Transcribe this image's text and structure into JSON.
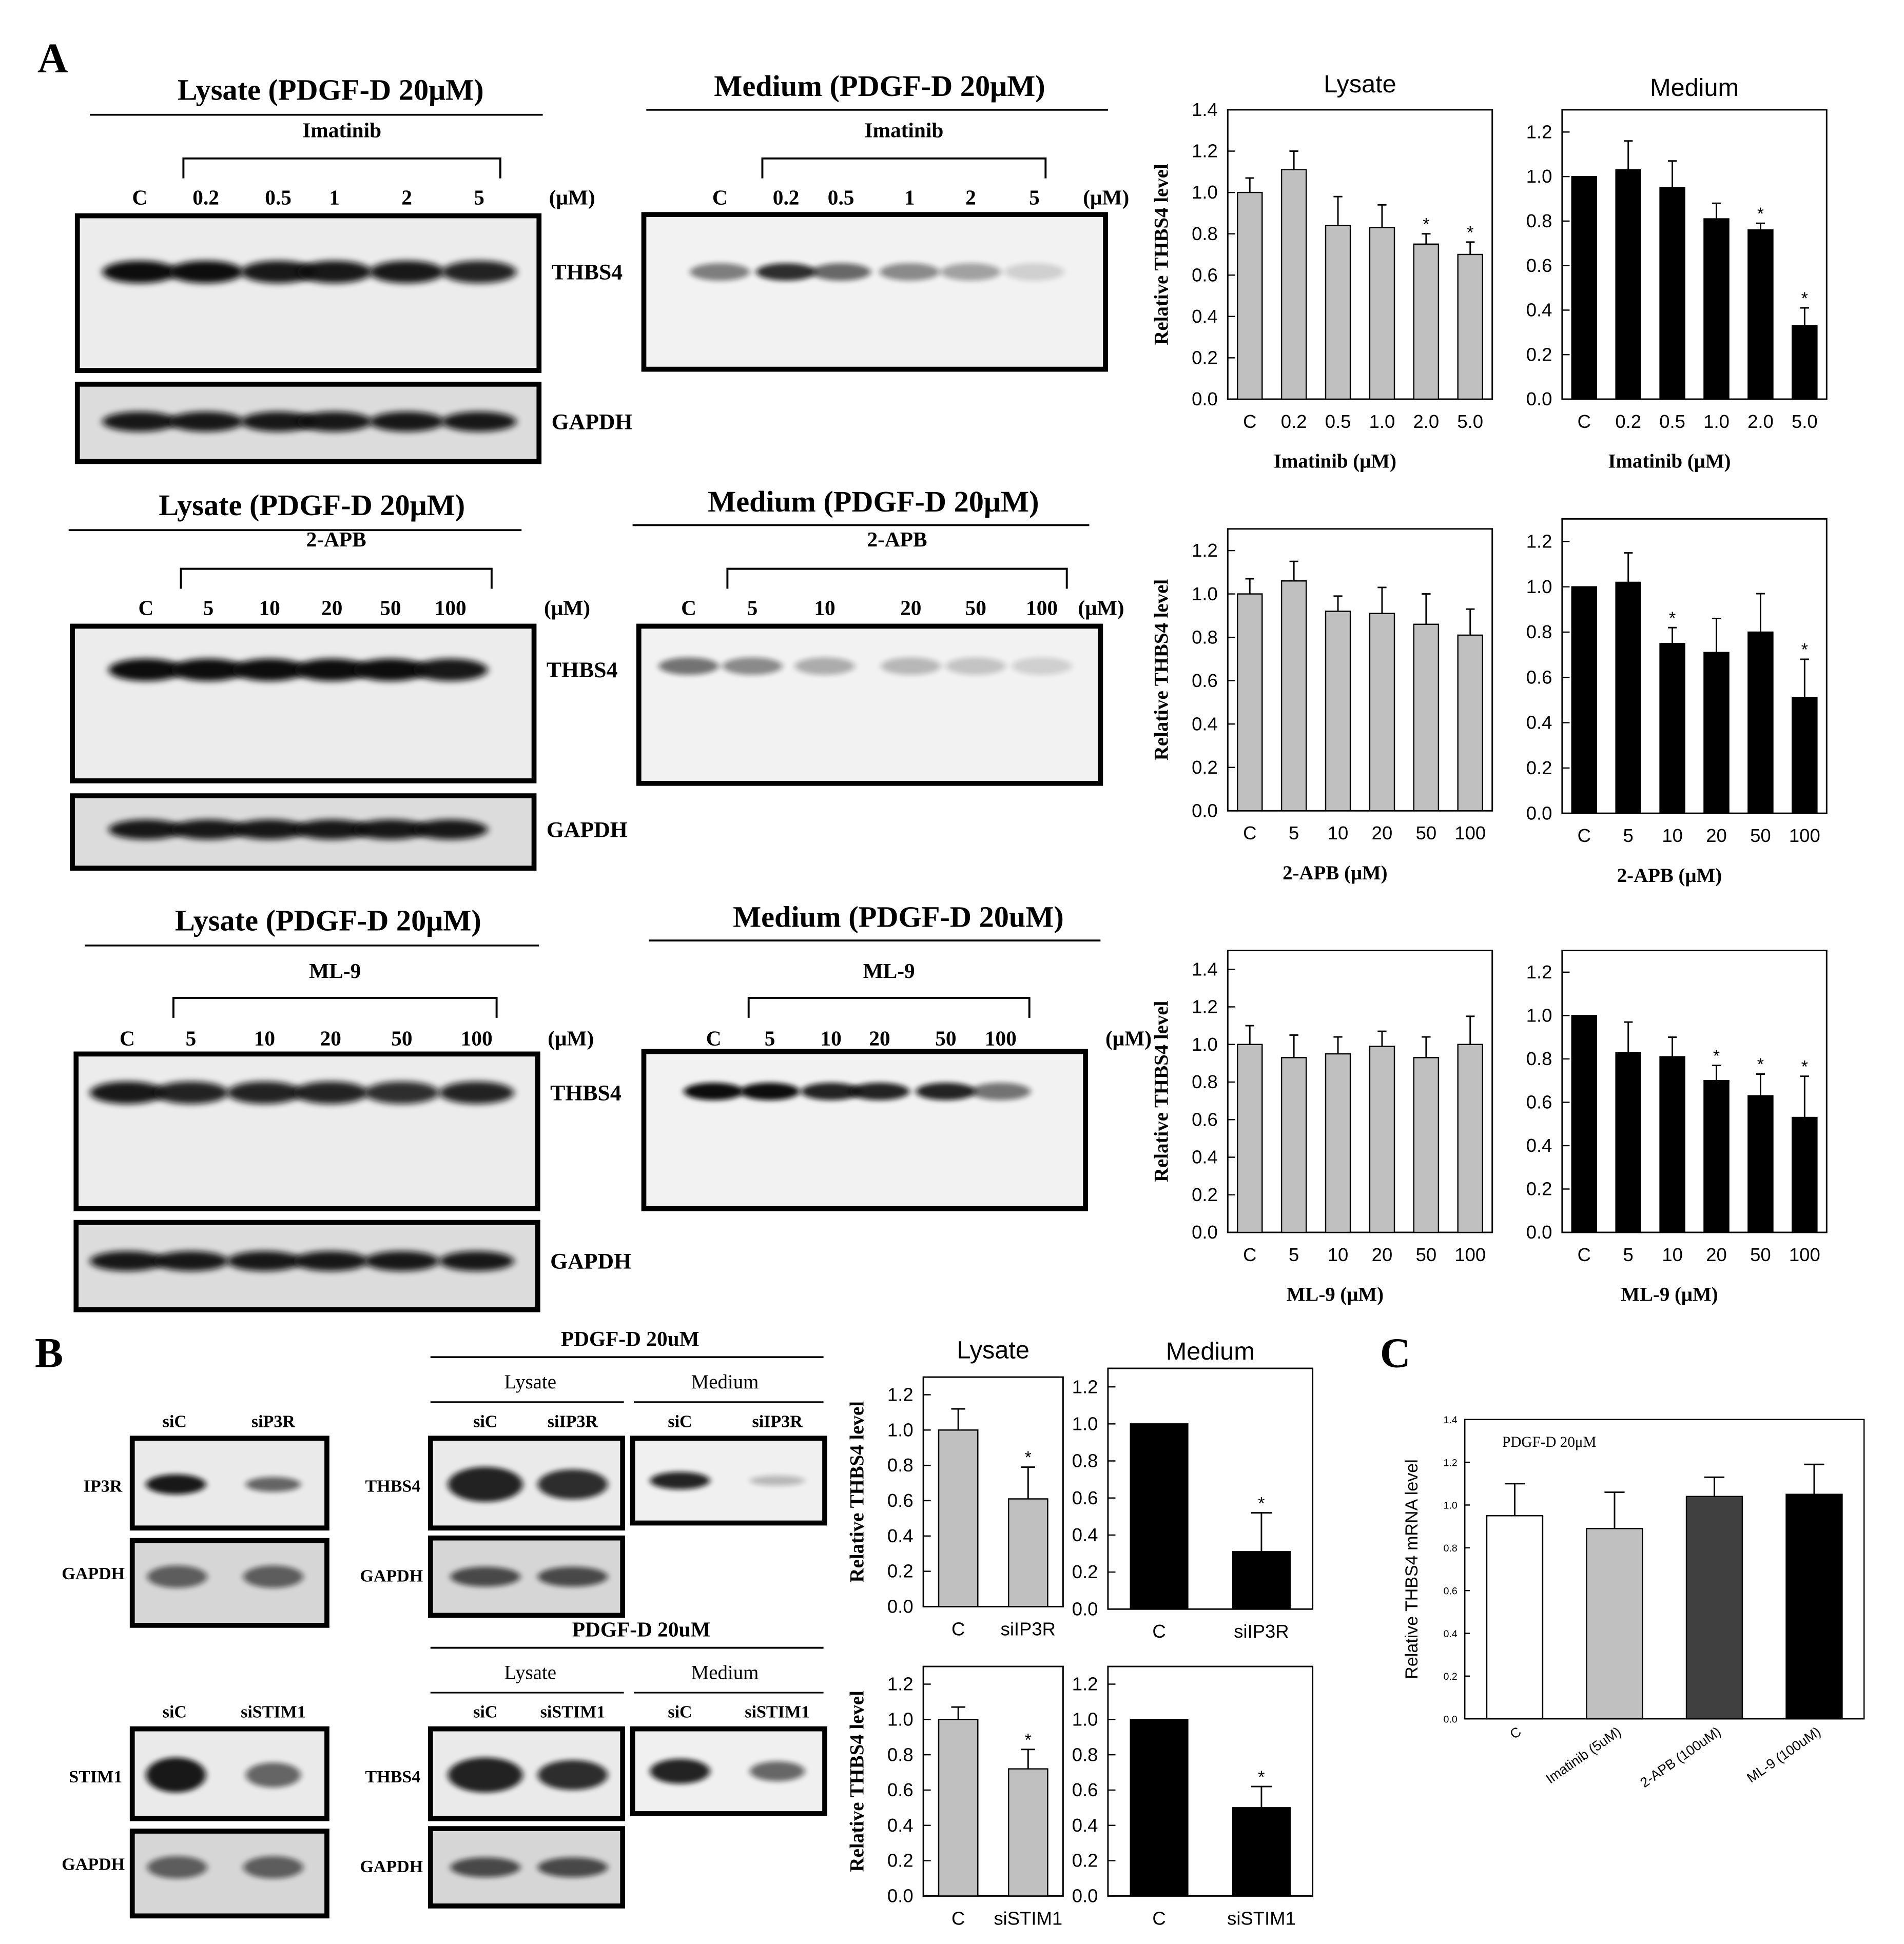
{
  "panels": {
    "A": "A",
    "B": "B",
    "C": "C"
  },
  "colors": {
    "gray_bar": "#c0c0c0",
    "black_bar": "#000000",
    "dark_bar": "#404040",
    "white_bar": "#ffffff",
    "blot_band": "#1a1a1a"
  },
  "panelA": {
    "rows": [
      {
        "lysate_title": "Lysate (PDGF-D 20μM)",
        "medium_title": "Medium (PDGF-D 20μM)",
        "drug": "Imatinib",
        "lysate_lanes": [
          "C",
          "0.2",
          "0.5",
          "1",
          "2",
          "5"
        ],
        "medium_lanes": [
          "C",
          "0.2",
          "0.5",
          "1",
          "2",
          "5"
        ],
        "unit": "(μM)",
        "band1": "THBS4",
        "band2": "GAPDH"
      },
      {
        "lysate_title": "Lysate (PDGF-D 20μM)",
        "medium_title": "Medium (PDGF-D 20μM)",
        "drug": "2-APB",
        "lysate_lanes": [
          "C",
          "5",
          "10",
          "20",
          "50",
          "100"
        ],
        "medium_lanes": [
          "C",
          "5",
          "10",
          "20",
          "50",
          "100"
        ],
        "unit": "(μM)",
        "band1": "THBS4",
        "band2": "GAPDH"
      },
      {
        "lysate_title": "Lysate (PDGF-D 20μM)",
        "medium_title": "Medium (PDGF-D 20uM)",
        "drug": "ML-9",
        "lysate_lanes": [
          "C",
          "5",
          "10",
          "20",
          "50",
          "100"
        ],
        "medium_lanes": [
          "C",
          "5",
          "10",
          "20",
          "50",
          "100"
        ],
        "unit": "(μM)",
        "band1": "THBS4",
        "band2": "GAPDH"
      }
    ]
  },
  "panelB": {
    "top": {
      "kd_labels": [
        "siC",
        "siP3R"
      ],
      "kd_target": "IP3R",
      "loading": "GAPDH",
      "header": "PDGF-D 20uM",
      "lysate": "Lysate",
      "medium": "Medium",
      "lanes": [
        "siC",
        "siIP3R"
      ],
      "band": "THBS4"
    },
    "bottom": {
      "kd_labels": [
        "siC",
        "siSTIM1"
      ],
      "kd_target": "STIM1",
      "loading": "GAPDH",
      "header": "PDGF-D 20uM",
      "lysate": "Lysate",
      "medium": "Medium",
      "lanes": [
        "siC",
        "siSTIM1"
      ],
      "band": "THBS4"
    }
  },
  "chart_data": [
    {
      "id": "A-imatinib-lysate",
      "type": "bar",
      "title": "Lysate",
      "categories": [
        "C",
        "0.2",
        "0.5",
        "1.0",
        "2.0",
        "5.0"
      ],
      "values": [
        1.0,
        1.11,
        0.84,
        0.83,
        0.75,
        0.7
      ],
      "errors": [
        0.07,
        0.09,
        0.14,
        0.11,
        0.05,
        0.06
      ],
      "significant": [
        false,
        false,
        false,
        false,
        true,
        true
      ],
      "xlabel": "Imatinib (μM)",
      "ylabel": "Relative THBS4 level",
      "ylim": [
        0,
        1.4
      ],
      "yticks": [
        0.0,
        0.2,
        0.4,
        0.6,
        0.8,
        1.0,
        1.2,
        1.4
      ],
      "color": "#c0c0c0"
    },
    {
      "id": "A-imatinib-medium",
      "type": "bar",
      "title": "Medium",
      "categories": [
        "C",
        "0.2",
        "0.5",
        "1.0",
        "2.0",
        "5.0"
      ],
      "values": [
        1.0,
        1.03,
        0.95,
        0.81,
        0.76,
        0.33
      ],
      "errors": [
        0.0,
        0.13,
        0.12,
        0.07,
        0.03,
        0.08
      ],
      "significant": [
        false,
        false,
        false,
        false,
        true,
        true
      ],
      "xlabel": "Imatinib (μM)",
      "ylabel": "",
      "ylim": [
        0,
        1.3
      ],
      "yticks": [
        0.0,
        0.2,
        0.4,
        0.6,
        0.8,
        1.0,
        1.2
      ],
      "color": "#000000"
    },
    {
      "id": "A-2apb-lysate",
      "type": "bar",
      "title": "",
      "categories": [
        "C",
        "5",
        "10",
        "20",
        "50",
        "100"
      ],
      "values": [
        1.0,
        1.06,
        0.92,
        0.91,
        0.86,
        0.81
      ],
      "errors": [
        0.07,
        0.09,
        0.07,
        0.12,
        0.14,
        0.12
      ],
      "significant": [
        false,
        false,
        false,
        false,
        false,
        false
      ],
      "xlabel": "2-APB (μM)",
      "ylabel": "Relative THBS4 level",
      "ylim": [
        0,
        1.3
      ],
      "yticks": [
        0.0,
        0.2,
        0.4,
        0.6,
        0.8,
        1.0,
        1.2
      ],
      "color": "#c0c0c0"
    },
    {
      "id": "A-2apb-medium",
      "type": "bar",
      "title": "",
      "categories": [
        "C",
        "5",
        "10",
        "20",
        "50",
        "100"
      ],
      "values": [
        1.0,
        1.02,
        0.75,
        0.71,
        0.8,
        0.51
      ],
      "errors": [
        0.0,
        0.13,
        0.07,
        0.15,
        0.17,
        0.17
      ],
      "significant": [
        false,
        false,
        true,
        false,
        false,
        true
      ],
      "xlabel": "2-APB (μM)",
      "ylabel": "",
      "ylim": [
        0,
        1.3
      ],
      "yticks": [
        0.0,
        0.2,
        0.4,
        0.6,
        0.8,
        1.0,
        1.2
      ],
      "color": "#000000"
    },
    {
      "id": "A-ml9-lysate",
      "type": "bar",
      "title": "",
      "categories": [
        "C",
        "5",
        "10",
        "20",
        "50",
        "100"
      ],
      "values": [
        1.0,
        0.93,
        0.95,
        0.99,
        0.93,
        1.0
      ],
      "errors": [
        0.1,
        0.12,
        0.09,
        0.08,
        0.11,
        0.15
      ],
      "significant": [
        false,
        false,
        false,
        false,
        false,
        false
      ],
      "xlabel": "ML-9 (μM)",
      "ylabel": "Relative THBS4 level",
      "ylim": [
        0,
        1.5
      ],
      "yticks": [
        0.0,
        0.2,
        0.4,
        0.6,
        0.8,
        1.0,
        1.2,
        1.4
      ],
      "color": "#c0c0c0"
    },
    {
      "id": "A-ml9-medium",
      "type": "bar",
      "title": "",
      "categories": [
        "C",
        "5",
        "10",
        "20",
        "50",
        "100"
      ],
      "values": [
        1.0,
        0.83,
        0.81,
        0.7,
        0.63,
        0.53
      ],
      "errors": [
        0.0,
        0.14,
        0.09,
        0.07,
        0.1,
        0.19
      ],
      "significant": [
        false,
        false,
        false,
        true,
        true,
        true
      ],
      "xlabel": "ML-9 (μM)",
      "ylabel": "",
      "ylim": [
        0,
        1.3
      ],
      "yticks": [
        0.0,
        0.2,
        0.4,
        0.6,
        0.8,
        1.0,
        1.2
      ],
      "color": "#000000"
    },
    {
      "id": "B-ip3r-lysate",
      "type": "bar",
      "title": "Lysate",
      "categories": [
        "C",
        "siIP3R"
      ],
      "values": [
        1.0,
        0.61
      ],
      "errors": [
        0.12,
        0.18
      ],
      "significant": [
        false,
        true
      ],
      "xlabel": "",
      "ylabel": "Relative THBS4 level",
      "ylim": [
        0,
        1.3
      ],
      "yticks": [
        0.0,
        0.2,
        0.4,
        0.6,
        0.8,
        1.0,
        1.2
      ],
      "color": "#c0c0c0"
    },
    {
      "id": "B-ip3r-medium",
      "type": "bar",
      "title": "Medium",
      "categories": [
        "C",
        "siIP3R"
      ],
      "values": [
        1.0,
        0.31
      ],
      "errors": [
        0.0,
        0.21
      ],
      "significant": [
        false,
        true
      ],
      "xlabel": "",
      "ylabel": "",
      "ylim": [
        0,
        1.3
      ],
      "yticks": [
        0.0,
        0.2,
        0.4,
        0.6,
        0.8,
        1.0,
        1.2
      ],
      "color": "#000000"
    },
    {
      "id": "B-stim1-lysate",
      "type": "bar",
      "title": "",
      "categories": [
        "C",
        "siSTIM1"
      ],
      "values": [
        1.0,
        0.72
      ],
      "errors": [
        0.07,
        0.11
      ],
      "significant": [
        false,
        true
      ],
      "xlabel": "",
      "ylabel": "Relative THBS4 level",
      "ylim": [
        0,
        1.3
      ],
      "yticks": [
        0.0,
        0.2,
        0.4,
        0.6,
        0.8,
        1.0,
        1.2
      ],
      "color": "#c0c0c0"
    },
    {
      "id": "B-stim1-medium",
      "type": "bar",
      "title": "",
      "categories": [
        "C",
        "siSTIM1"
      ],
      "values": [
        1.0,
        0.5
      ],
      "errors": [
        0.0,
        0.12
      ],
      "significant": [
        false,
        true
      ],
      "xlabel": "",
      "ylabel": "",
      "ylim": [
        0,
        1.3
      ],
      "yticks": [
        0.0,
        0.2,
        0.4,
        0.6,
        0.8,
        1.0,
        1.2
      ],
      "color": "#000000"
    },
    {
      "id": "C-mrna",
      "type": "bar",
      "title": "",
      "annotation": "PDGF-D 20μM",
      "categories": [
        "C",
        "Imatinib (5uM)",
        "2-APB (100uM)",
        "ML-9 (100uM)"
      ],
      "values": [
        0.95,
        0.89,
        1.04,
        1.05
      ],
      "errors": [
        0.15,
        0.17,
        0.09,
        0.14
      ],
      "significant": [
        false,
        false,
        false,
        false
      ],
      "colors": [
        "#ffffff",
        "#c0c0c0",
        "#404040",
        "#000000"
      ],
      "xlabel": "",
      "ylabel": "Relative THBS4 mRNA level",
      "ylim": [
        0,
        1.4
      ],
      "yticks": [
        0.0,
        0.2,
        0.4,
        0.6,
        0.8,
        1.0,
        1.2,
        1.4
      ]
    }
  ]
}
